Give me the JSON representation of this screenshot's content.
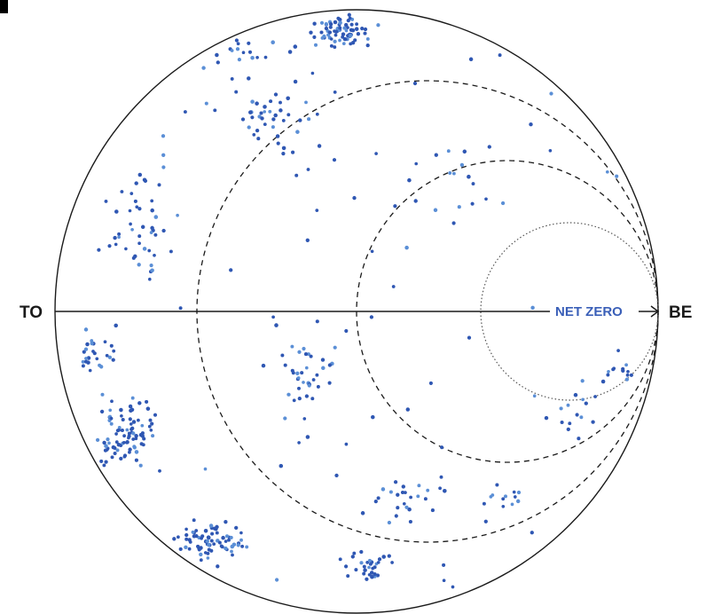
{
  "labels": {
    "left": "TO",
    "right": "BE",
    "target": "NET ZERO"
  },
  "colors": {
    "outline": "#1a1a1a",
    "dot_primary": "#2f57b3",
    "dot_secondary": "#5b8fd6",
    "target_text": "#3a5fb8"
  }
}
